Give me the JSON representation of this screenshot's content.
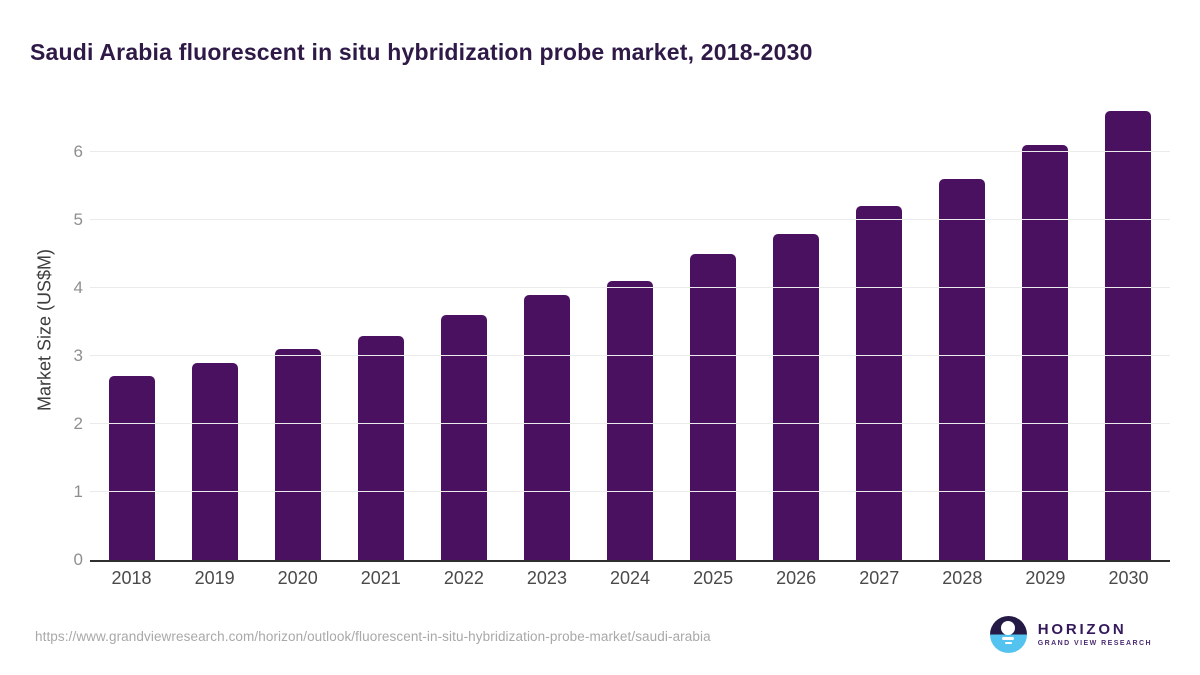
{
  "title": "Saudi Arabia fluorescent in situ hybridization probe market, 2018-2030",
  "chart_data": {
    "type": "bar",
    "title": "Saudi Arabia fluorescent in situ hybridization probe market, 2018-2030",
    "categories": [
      "2018",
      "2019",
      "2020",
      "2021",
      "2022",
      "2023",
      "2024",
      "2025",
      "2026",
      "2027",
      "2028",
      "2029",
      "2030"
    ],
    "values": [
      2.7,
      2.9,
      3.1,
      3.3,
      3.6,
      3.9,
      4.1,
      4.5,
      4.8,
      5.2,
      5.6,
      6.1,
      6.6
    ],
    "xlabel": "",
    "ylabel": "Market Size (US$M)",
    "ylim": [
      0,
      6.8
    ],
    "yticks": [
      0,
      1,
      2,
      3,
      4,
      5,
      6
    ],
    "grid": "horizontal",
    "legend": "none",
    "bar_color": "#4b1161"
  },
  "footer": {
    "source_url": "https://www.grandviewresearch.com/horizon/outlook/fluorescent-in-situ-hybridization-probe-market/saudi-arabia",
    "logo_name": "HORIZON",
    "logo_tagline": "GRAND VIEW RESEARCH"
  },
  "colors": {
    "bar": "#4b1161",
    "title_text": "#2e1947",
    "gridline": "#ebebeb",
    "axis_line": "#2f2f2f",
    "logo_dark": "#251a45",
    "logo_blue": "#55c3f0",
    "logo_text": "#33195b"
  }
}
